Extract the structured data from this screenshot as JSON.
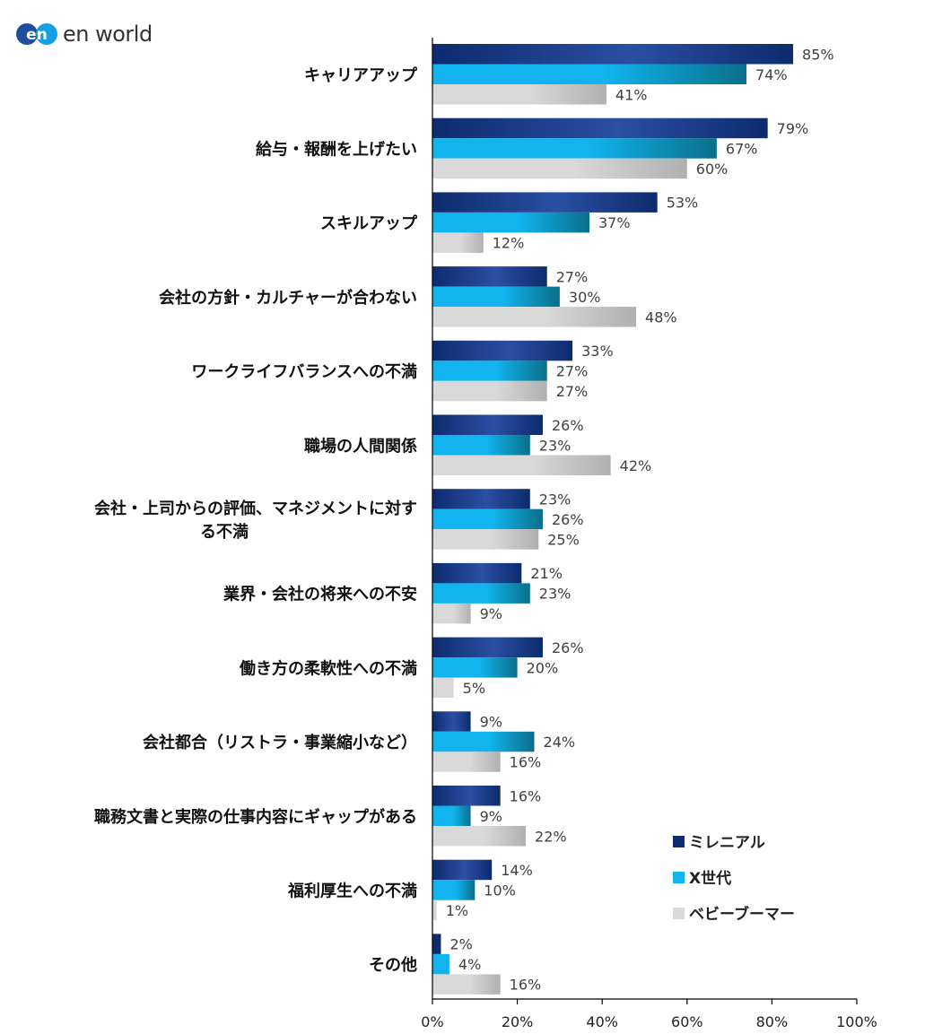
{
  "brand": {
    "logo_text": "en world",
    "logo_mark_text": "en"
  },
  "colors": {
    "millennial": "#0d2b6e",
    "millennial_light": "#2a4fa3",
    "genx": "#11b4ee",
    "genx_dark": "#0a6f8a",
    "boomer": "#d9d9d9",
    "boomer_dark": "#b0b0b0",
    "axis": "#000000"
  },
  "chart_data": {
    "type": "bar",
    "orientation": "horizontal",
    "categories": [
      "キャリアアップ",
      "給与・報酬を上げたい",
      "スキルアップ",
      "会社の方針・カルチャーが合わない",
      "ワークライフバランスへの不満",
      "職場の人間関係",
      "会社・上司からの評価、マネジメントに対する不満",
      "業界・会社の将来への不安",
      "働き方の柔軟性への不満",
      "会社都合（リストラ・事業縮小など）",
      "職務文書と実際の仕事内容にギャップがある",
      "福利厚生への不満",
      "その他"
    ],
    "category_label_lines": [
      [
        "キャリアアップ"
      ],
      [
        "給与・報酬を上げたい"
      ],
      [
        "スキルアップ"
      ],
      [
        "会社の方針・カルチャーが合わない"
      ],
      [
        "ワークライフバランスへの不満"
      ],
      [
        "職場の人間関係"
      ],
      [
        "会社・上司からの評価、マネジメントに対す",
        "る不満"
      ],
      [
        "業界・会社の将来への不安"
      ],
      [
        "働き方の柔軟性への不満"
      ],
      [
        "会社都合（リストラ・事業縮小など）"
      ],
      [
        "職務文書と実際の仕事内容にギャップがある"
      ],
      [
        "福利厚生への不満"
      ],
      [
        "その他"
      ]
    ],
    "series": [
      {
        "name": "ミレニアル",
        "values": [
          85,
          79,
          53,
          27,
          33,
          26,
          23,
          21,
          26,
          9,
          16,
          14,
          2
        ]
      },
      {
        "name": "X世代",
        "values": [
          74,
          67,
          37,
          30,
          27,
          23,
          26,
          23,
          20,
          24,
          9,
          10,
          4
        ]
      },
      {
        "name": "ベビーブーマー",
        "values": [
          41,
          60,
          12,
          48,
          27,
          42,
          25,
          9,
          5,
          16,
          22,
          1,
          16
        ]
      }
    ],
    "value_suffix": "%",
    "xlim": [
      0,
      100
    ],
    "xticks": [
      0,
      20,
      40,
      60,
      80,
      100
    ],
    "xtick_labels": [
      "0%",
      "20%",
      "40%",
      "60%",
      "80%",
      "100%"
    ],
    "grid": false,
    "legend_position": "bottom-right"
  }
}
